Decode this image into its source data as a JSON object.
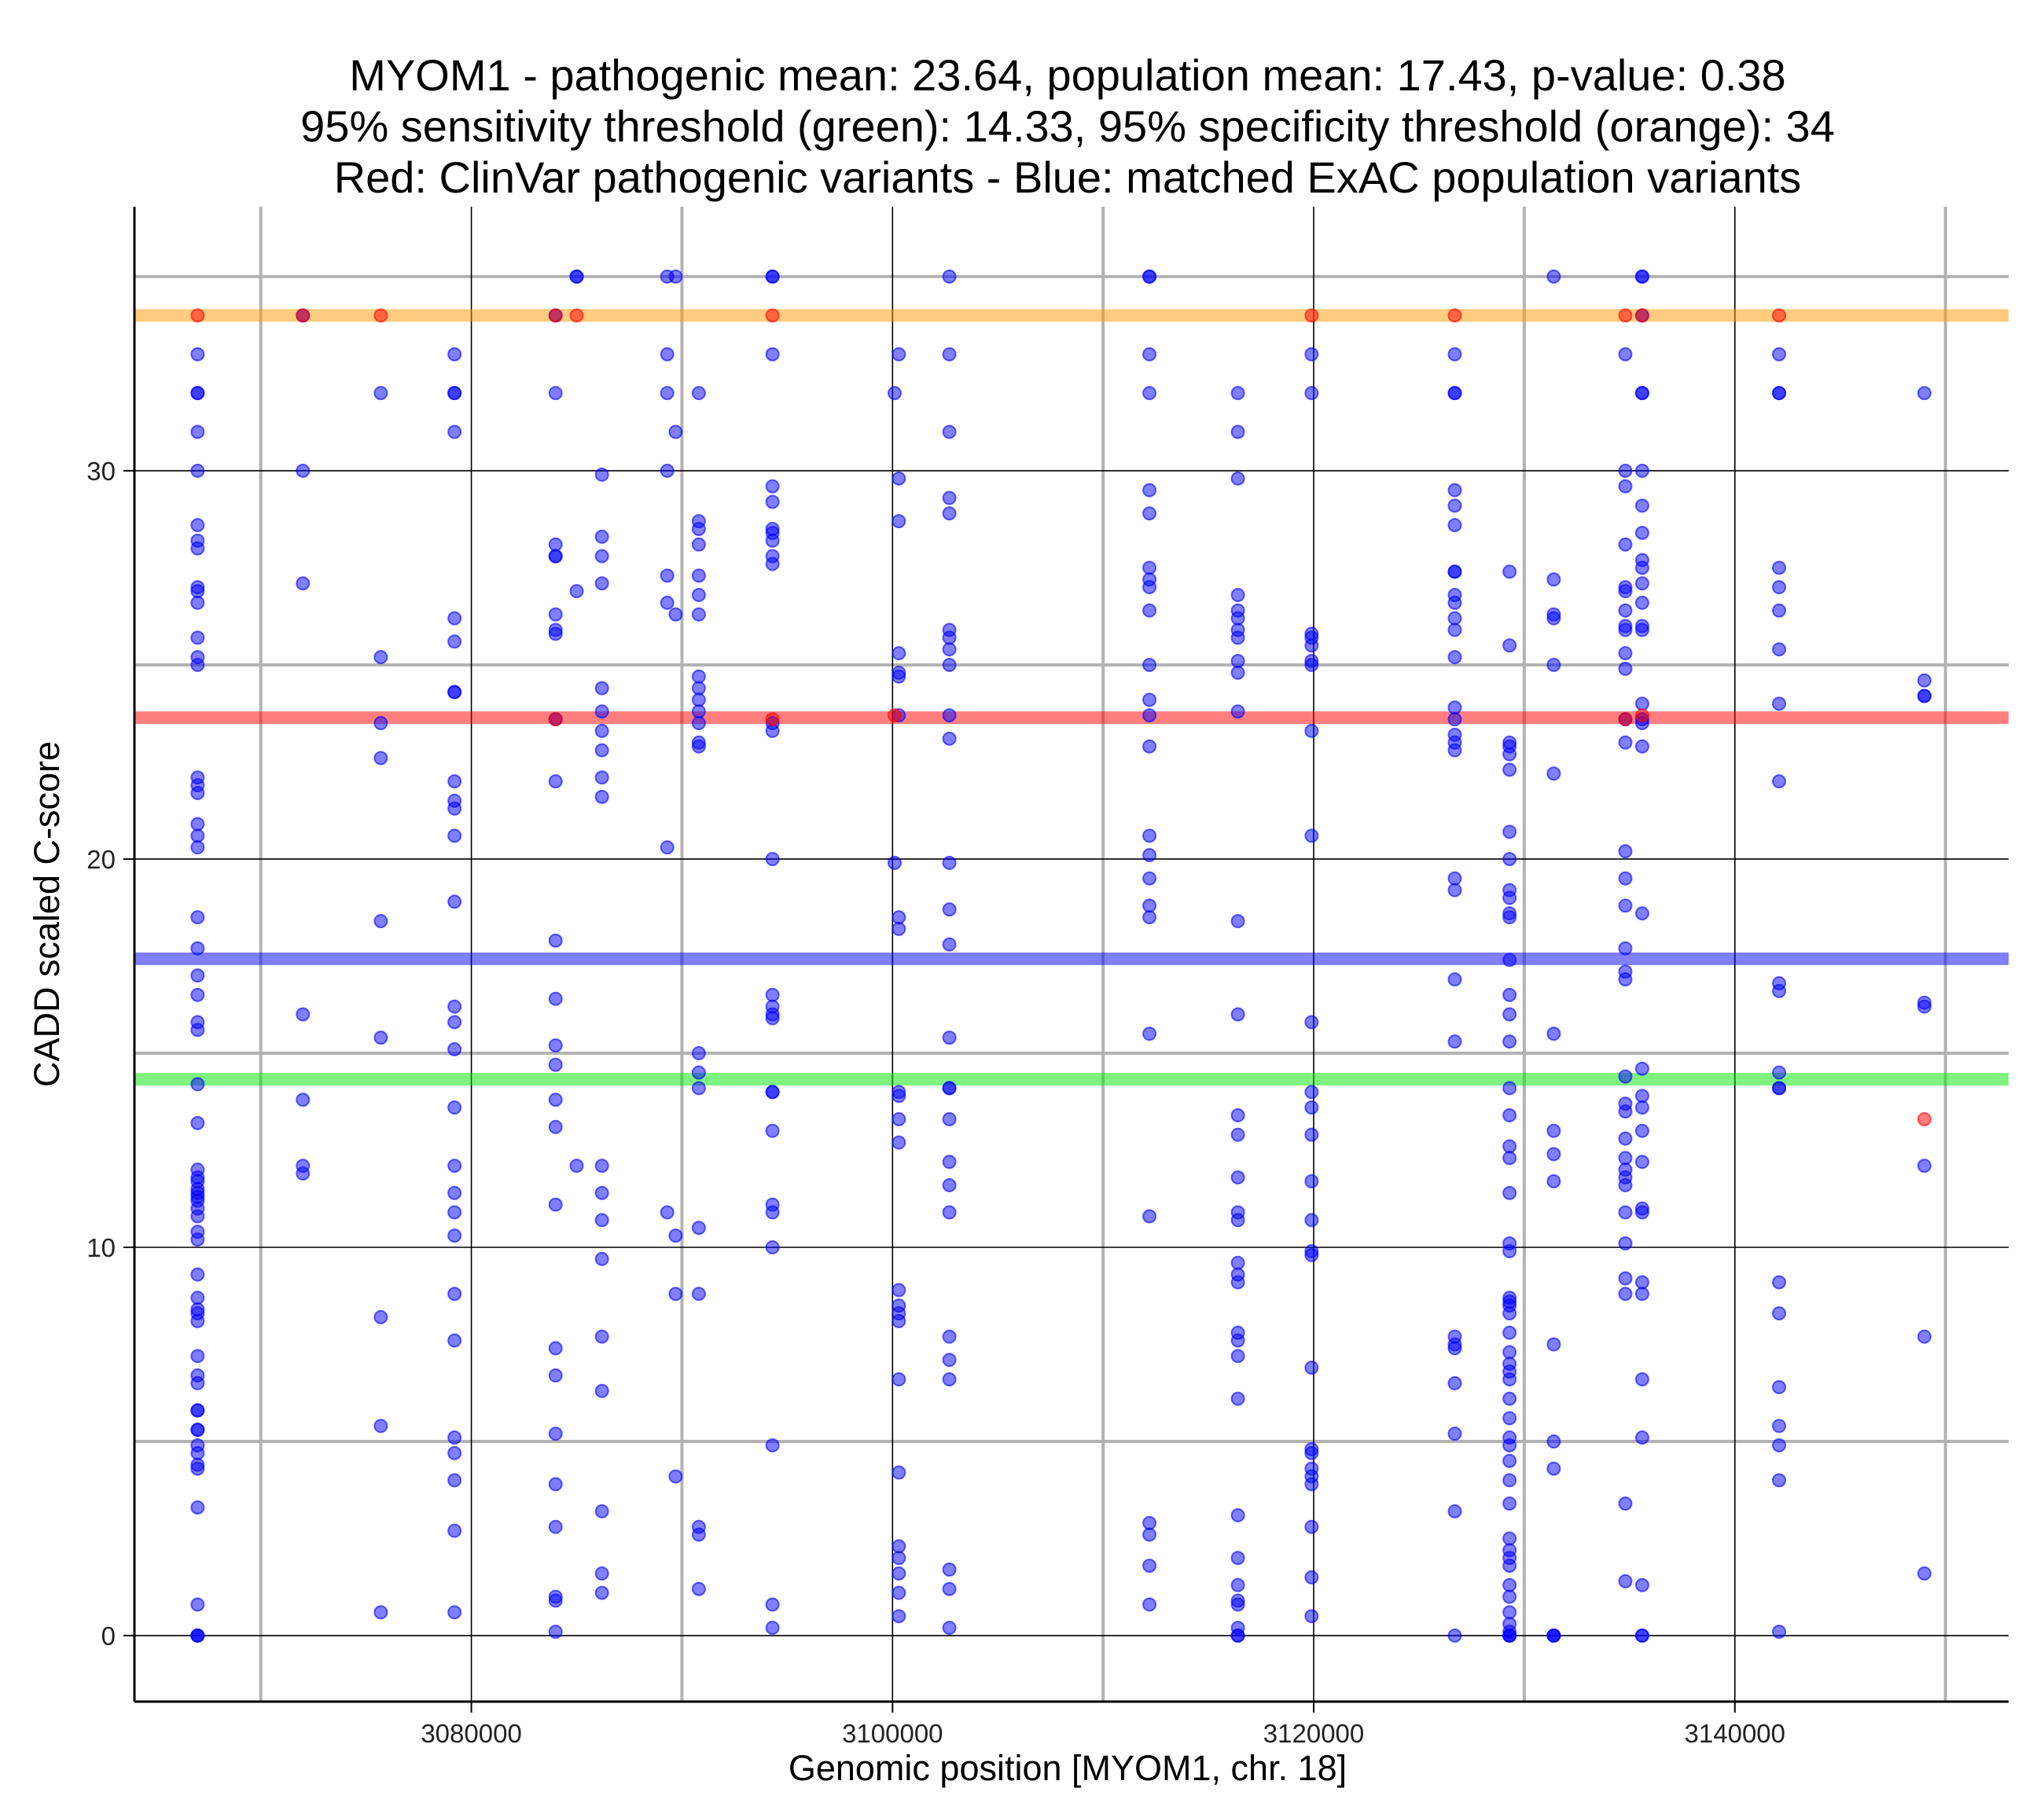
{
  "chart_data": {
    "type": "scatter",
    "title_lines": [
      "MYOM1 - pathogenic mean: 23.64, population mean: 17.43, p-value: 0.38",
      "95% sensitivity threshold (green): 14.33, 95% specificity threshold (orange): 34",
      "Red: ClinVar pathogenic variants - Blue: matched ExAC population variants"
    ],
    "xlabel": "Genomic position [MYOM1, chr. 18]",
    "ylabel": "CADD scaled C-score",
    "xlim": [
      3064000,
      3153000
    ],
    "ylim": [
      -1.7,
      36.8
    ],
    "x_ticks": [
      3080000,
      3100000,
      3120000,
      3140000
    ],
    "x_tick_labels": [
      "3080000",
      "3100000",
      "3120000",
      "3140000"
    ],
    "x_minor_grid": [
      3070000,
      3090000,
      3110000,
      3130000,
      3150000
    ],
    "y_ticks": [
      0,
      10,
      20,
      30
    ],
    "y_tick_labels": [
      "0",
      "10",
      "20",
      "30"
    ],
    "y_minor_grid": [
      5,
      15,
      25,
      35
    ],
    "colors": {
      "population": "#0000ff",
      "pathogenic": "#ff0000",
      "pathogenic_mean": "#ff0000",
      "population_mean": "#0000ff",
      "sensitivity_threshold": "#00e600",
      "specificity_threshold": "#ff9900"
    },
    "hlines": [
      {
        "name": "specificity-threshold-line",
        "y": 34,
        "color": "#ff9900"
      },
      {
        "name": "pathogenic-mean-line",
        "y": 23.64,
        "color": "#ff0000"
      },
      {
        "name": "population-mean-line",
        "y": 17.43,
        "color": "#0000ff"
      },
      {
        "name": "sensitivity-threshold-line",
        "y": 14.33,
        "color": "#00e600"
      }
    ],
    "series": [
      {
        "name": "ExAC population variants",
        "color": "#0000ff",
        "points": [
          {
            "x": 3067000,
            "ys": [
              33,
              32,
              32,
              31,
              30,
              28.6,
              28.2,
              28,
              27,
              26.9,
              26.6,
              25.7,
              25.2,
              25,
              22.1,
              21.9,
              21.7,
              20.9,
              20.6,
              20.3,
              18.5,
              17.7,
              17,
              16.5,
              15.8,
              15.6,
              14.2,
              13.2,
              12,
              11.8,
              11.7,
              11.5,
              11.4,
              11.3,
              11.2,
              11,
              10.8,
              10.4,
              10.2,
              9.3,
              8.7,
              8.4,
              8.3,
              8.1,
              7.2,
              6.7,
              6.5,
              5.8,
              5.8,
              5.3,
              5.3,
              4.9,
              4.7,
              4.4,
              4.3,
              3.3,
              0.8,
              0,
              0,
              0
            ]
          },
          {
            "x": 3072000,
            "ys": [
              34,
              30,
              27.1,
              16,
              13.8,
              12.1,
              11.9
            ]
          },
          {
            "x": 3075700,
            "ys": [
              32,
              25.2,
              23.5,
              22.6,
              18.4,
              15.4,
              8.2,
              5.4,
              0.6
            ]
          },
          {
            "x": 3079200,
            "ys": [
              33,
              32,
              32,
              31,
              26.2,
              25.6,
              24.3,
              24.3,
              22,
              21.5,
              21.3,
              20.6,
              18.9,
              16.2,
              15.8,
              15.1,
              13.6,
              12.1,
              11.4,
              10.9,
              10.3,
              8.8,
              7.6,
              5.1,
              4.7,
              4.0,
              2.7,
              0.6
            ]
          },
          {
            "x": 3084000,
            "ys": [
              34,
              32,
              28.1,
              27.8,
              27.8,
              26.3,
              25.9,
              25.8,
              23.6,
              22,
              17.9,
              16.4,
              15.2,
              14.7,
              13.8,
              13.1,
              11.1,
              7.4,
              6.7,
              5.2,
              3.9,
              2.8,
              1,
              0.9,
              0.1
            ]
          },
          {
            "x": 3085000,
            "ys": [
              35,
              35,
              26.9,
              12.1
            ]
          },
          {
            "x": 3086200,
            "ys": [
              29.9,
              28.3,
              27.8,
              27.1,
              24.4,
              23.8,
              23.3,
              22.8,
              22.1,
              21.6,
              12.1,
              11.4,
              10.7,
              9.7,
              7.7,
              6.3,
              3.2,
              1.6,
              1.1
            ]
          },
          {
            "x": 3089300,
            "ys": [
              35,
              33,
              32,
              30,
              27.3,
              26.6,
              20.3,
              10.9
            ]
          },
          {
            "x": 3089700,
            "ys": [
              35,
              31,
              26.3,
              10.3,
              8.8,
              4.1
            ]
          },
          {
            "x": 3090800,
            "ys": [
              32,
              28.7,
              28.5,
              28.1,
              27.3,
              26.8,
              26.3,
              24.7,
              24.4,
              24.1,
              23.8,
              23.5,
              23.0,
              22.9,
              15,
              14.5,
              14.1,
              10.5,
              8.8,
              2.8,
              2.6,
              1.2
            ]
          },
          {
            "x": 3094300,
            "ys": [
              35,
              35,
              33,
              29.6,
              29.2,
              28.5,
              28.4,
              28.2,
              27.8,
              27.6,
              23.5,
              23.3,
              20,
              16.5,
              16.2,
              16.0,
              15.9,
              14,
              14,
              13,
              11.1,
              10.9,
              10,
              4.9,
              0.8,
              0.2
            ]
          },
          {
            "x": 3100300,
            "ys": [
              33,
              29.8,
              28.7,
              25.3,
              24.8,
              24.7,
              23.7,
              18.5,
              18.2,
              14.0,
              13.9,
              13.3,
              12.7,
              8.9,
              8.5,
              8.3,
              8.1,
              6.6,
              4.2,
              2.3,
              2.0,
              1.6,
              1.1,
              0.5
            ]
          },
          {
            "x": 3100100,
            "ys": [
              32,
              19.9
            ]
          },
          {
            "x": 3102700,
            "ys": [
              35,
              33,
              31,
              29.3,
              28.9,
              25.9,
              25.7,
              25.4,
              25,
              23.7,
              23.1,
              19.9,
              18.7,
              17.8,
              15.4,
              14.1,
              14.1,
              13.3,
              12.2,
              11.6,
              10.9,
              7.7,
              7.1,
              6.6,
              1.7,
              1.2,
              0.2
            ]
          },
          {
            "x": 3112200,
            "ys": [
              35,
              35,
              33,
              32,
              29.5,
              28.9,
              27.5,
              27.2,
              27.0,
              26.4,
              25.0,
              24.1,
              23.7,
              22.9,
              20.6,
              20.1,
              19.5,
              18.8,
              18.5,
              15.5,
              10.8,
              2.9,
              2.6,
              1.8,
              0.8
            ]
          },
          {
            "x": 3116400,
            "ys": [
              32,
              31,
              29.8,
              26.8,
              26.4,
              26.2,
              25.9,
              25.7,
              25.1,
              24.8,
              23.8,
              18.4,
              16,
              13.4,
              12.9,
              11.8,
              10.9,
              10.7,
              9.6,
              9.3,
              9.1,
              7.8,
              7.6,
              7.2,
              6.1,
              3.1,
              2.0,
              1.3,
              0.9,
              0.8,
              0.2,
              0,
              0
            ]
          },
          {
            "x": 3119900,
            "ys": [
              33,
              32,
              25.8,
              25.7,
              25.5,
              25.1,
              25.0,
              23.3,
              20.6,
              15.8,
              14.0,
              13.6,
              12.9,
              11.7,
              10.7,
              9.9,
              9.8,
              6.9,
              4.8,
              4.7,
              4.3,
              4.1,
              3.9,
              2.8,
              1.5,
              0.5
            ]
          },
          {
            "x": 3126700,
            "ys": [
              33,
              32,
              32,
              29.5,
              29.1,
              28.6,
              27.4,
              27.4,
              26.8,
              26.6,
              26.2,
              25.9,
              25.2,
              23.9,
              23.6,
              23.2,
              23.0,
              22.8,
              19.5,
              19.2,
              16.9,
              15.3,
              7.7,
              7.5,
              7.4,
              6.5,
              5.2,
              3.2,
              0
            ]
          },
          {
            "x": 3129300,
            "ys": [
              27.4,
              25.5,
              23.0,
              22.9,
              22.7,
              22.3,
              20.7,
              20.0,
              19.2,
              19.0,
              18.6,
              18.5,
              17.4,
              16.5,
              16.0,
              15.3,
              14.1,
              13.4,
              12.6,
              12.3,
              11.4,
              10.1,
              9.9,
              8.7,
              8.6,
              8.5,
              8.3,
              7.8,
              7.3,
              7.0,
              6.8,
              6.6,
              6.1,
              5.6,
              5.1,
              4.9,
              4.5,
              4.0,
              3.4,
              2.5,
              2.2,
              2.0,
              1.8,
              1.3,
              1.0,
              0.6,
              0.3,
              0.1,
              0,
              0,
              0
            ]
          },
          {
            "x": 3131400,
            "ys": [
              35,
              27.2,
              26.3,
              26.2,
              25,
              22.2,
              15.5,
              13,
              12.4,
              11.7,
              7.5,
              5,
              4.3,
              0,
              0,
              0
            ]
          },
          {
            "x": 3134800,
            "ys": [
              33,
              30,
              29.6,
              28.1,
              27.0,
              26.9,
              26.4,
              26.0,
              25.9,
              25.3,
              24.9,
              23.6,
              23.0,
              20.2,
              19.5,
              18.8,
              17.7,
              17.1,
              16.9,
              14.4,
              13.7,
              13.5,
              12.8,
              12.3,
              12.0,
              11.8,
              11.6,
              10.9,
              10.1,
              9.2,
              8.8,
              3.4,
              1.4
            ]
          },
          {
            "x": 3135600,
            "ys": [
              35,
              35,
              34,
              32,
              32,
              30,
              29.1,
              28.4,
              27.7,
              27.5,
              27.1,
              26.6,
              26.0,
              25.9,
              24.0,
              23.6,
              23.5,
              22.9,
              18.6,
              14.6,
              13.9,
              13.6,
              13.0,
              12.2,
              11.0,
              10.9,
              9.1,
              8.8,
              6.6,
              5.1,
              1.3,
              0,
              0
            ]
          },
          {
            "x": 3142100,
            "ys": [
              33,
              32,
              32,
              27.5,
              27.0,
              26.4,
              25.4,
              24.0,
              22.0,
              16.8,
              16.6,
              14.5,
              14.1,
              14.1,
              9.1,
              8.3,
              6.4,
              5.4,
              4.9,
              4.0,
              0.1
            ]
          },
          {
            "x": 3149000,
            "ys": [
              32,
              24.6,
              24.2,
              24.2,
              16.3,
              16.2,
              12.1,
              7.7,
              1.6
            ]
          }
        ]
      },
      {
        "name": "ClinVar pathogenic variants",
        "color": "#ff0000",
        "points": [
          {
            "x": 3067000,
            "ys": [
              34
            ]
          },
          {
            "x": 3072000,
            "ys": [
              34
            ]
          },
          {
            "x": 3075700,
            "ys": [
              34
            ]
          },
          {
            "x": 3084000,
            "ys": [
              34,
              23.6
            ]
          },
          {
            "x": 3085000,
            "ys": [
              34
            ]
          },
          {
            "x": 3094300,
            "ys": [
              34,
              23.6
            ]
          },
          {
            "x": 3100100,
            "ys": [
              23.7
            ]
          },
          {
            "x": 3119900,
            "ys": [
              34
            ]
          },
          {
            "x": 3126700,
            "ys": [
              34
            ]
          },
          {
            "x": 3134800,
            "ys": [
              34,
              23.6
            ]
          },
          {
            "x": 3135600,
            "ys": [
              34,
              23.7
            ]
          },
          {
            "x": 3142100,
            "ys": [
              34
            ]
          },
          {
            "x": 3149000,
            "ys": [
              13.3
            ]
          }
        ]
      }
    ]
  }
}
